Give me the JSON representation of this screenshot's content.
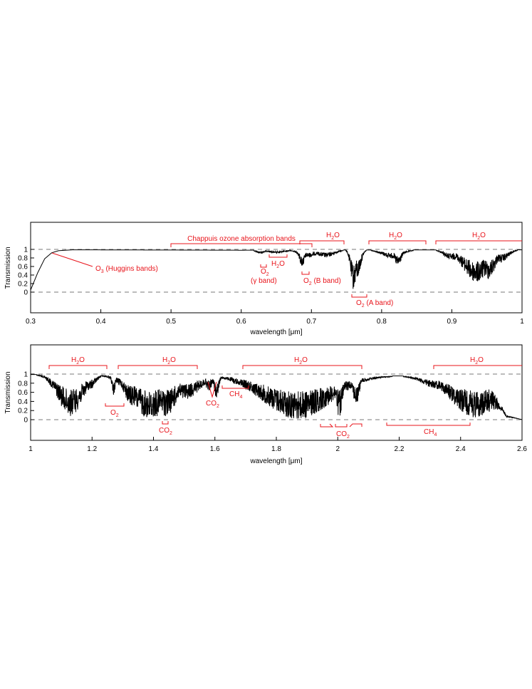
{
  "chart_data": [
    {
      "type": "line",
      "panel": "top",
      "xlabel": "wavelength [μm]",
      "ylabel": "Transmission",
      "xlim": [
        0.3,
        1.0
      ],
      "ylim": [
        -0.35,
        1.2
      ],
      "xticks": [
        "0.3",
        "0.4",
        "0.5",
        "0.6",
        "0.7",
        "0.8",
        "0.9",
        "1"
      ],
      "yticks": [
        "0",
        "0.2",
        "0.4",
        "0.6",
        "0.8",
        "1"
      ],
      "reference_lines": [
        0,
        1
      ],
      "spectrum": {
        "continuum": [
          [
            0.3,
            0.05
          ],
          [
            0.31,
            0.45
          ],
          [
            0.32,
            0.78
          ],
          [
            0.33,
            0.92
          ],
          [
            0.34,
            0.97
          ],
          [
            0.36,
            0.99
          ],
          [
            0.5,
            0.985
          ],
          [
            0.6,
            0.98
          ],
          [
            0.7,
            0.985
          ],
          [
            1.0,
            0.99
          ]
        ],
        "absorption": [
          {
            "center": 0.628,
            "width": 0.006,
            "min": 0.92
          },
          {
            "center": 0.65,
            "width": 0.012,
            "min": 0.93
          },
          {
            "center": 0.687,
            "width": 0.004,
            "min": 0.6
          },
          {
            "center": 0.695,
            "width": 0.012,
            "min": 0.82
          },
          {
            "center": 0.72,
            "width": 0.012,
            "min": 0.82
          },
          {
            "center": 0.76,
            "width": 0.004,
            "min": 0.05
          },
          {
            "center": 0.765,
            "width": 0.005,
            "min": 0.3
          },
          {
            "center": 0.815,
            "width": 0.014,
            "min": 0.8
          },
          {
            "center": 0.823,
            "width": 0.005,
            "min": 0.6
          },
          {
            "center": 0.9,
            "width": 0.01,
            "min": 0.75
          },
          {
            "center": 0.935,
            "width": 0.018,
            "min": 0.22
          },
          {
            "center": 0.952,
            "width": 0.01,
            "min": 0.3
          },
          {
            "center": 0.97,
            "width": 0.01,
            "min": 0.7
          }
        ]
      },
      "annotations": [
        {
          "text": "O3 (Huggins bands)",
          "base": "O",
          "sub": "3",
          "rest": " (Huggins bands)",
          "x": 0.33,
          "y": 0.92,
          "label_x": 0.39,
          "label_y": 0.6
        },
        {
          "text": "Chappuis ozone absorption bands",
          "x0": 0.5,
          "x1": 0.7,
          "label": "Chappuis ozone absorption bands"
        },
        {
          "text": "H2O",
          "x0": 0.68,
          "x1": 0.745
        },
        {
          "text": "H2O",
          "x0": 0.78,
          "x1": 0.865
        },
        {
          "text": "H2O",
          "x0": 0.875,
          "x1": 1.0
        },
        {
          "text": "H2O",
          "x0": 0.637,
          "x1": 0.662
        },
        {
          "text": "O2 (γ band)",
          "x0": 0.625,
          "x1": 0.632
        },
        {
          "text": "O2 (B band)",
          "x0": 0.683,
          "x1": 0.692
        },
        {
          "text": "O2 (A band)",
          "x0": 0.753,
          "x1": 0.772
        }
      ]
    },
    {
      "type": "line",
      "panel": "bottom",
      "xlabel": "wavelength [μm]",
      "ylabel": "Transmission",
      "xlim": [
        1.0,
        2.6
      ],
      "ylim": [
        -0.35,
        1.2
      ],
      "xticks": [
        "1",
        "1.2",
        "1.4",
        "1.6",
        "1.8",
        "2",
        "2.2",
        "2.4",
        "2.6"
      ],
      "yticks": [
        "0",
        "0.2",
        "0.4",
        "0.6",
        "0.8",
        "1"
      ],
      "reference_lines": [
        0,
        1
      ],
      "spectrum": {
        "continuum": [
          [
            1.0,
            0.99
          ],
          [
            1.06,
            0.99
          ],
          [
            2.5,
            0.95
          ],
          [
            2.55,
            0.1
          ],
          [
            2.6,
            0.0
          ]
        ],
        "absorption": [
          {
            "center": 1.13,
            "width": 0.04,
            "min": 0.08
          },
          {
            "center": 1.19,
            "width": 0.02,
            "min": 0.65
          },
          {
            "center": 1.27,
            "width": 0.005,
            "min": 0.5
          },
          {
            "center": 1.33,
            "width": 0.025,
            "min": 0.3
          },
          {
            "center": 1.39,
            "width": 0.06,
            "min": 0.0
          },
          {
            "center": 1.44,
            "width": 0.04,
            "min": 0.08
          },
          {
            "center": 1.5,
            "width": 0.05,
            "min": 0.45
          },
          {
            "center": 1.58,
            "width": 0.012,
            "min": 0.65
          },
          {
            "center": 1.605,
            "width": 0.008,
            "min": 0.5
          },
          {
            "center": 1.67,
            "width": 0.02,
            "min": 0.8
          },
          {
            "center": 1.87,
            "width": 0.11,
            "min": 0.0
          },
          {
            "center": 2.005,
            "width": 0.012,
            "min": 0.05
          },
          {
            "center": 2.06,
            "width": 0.01,
            "min": 0.3
          },
          {
            "center": 2.33,
            "width": 0.05,
            "min": 0.7
          },
          {
            "center": 2.45,
            "width": 0.08,
            "min": 0.05
          }
        ]
      },
      "annotations": [
        {
          "text": "H2O",
          "x0": 1.06,
          "x1": 1.25
        },
        {
          "text": "H2O",
          "x0": 1.29,
          "x1": 1.54
        },
        {
          "text": "H2O",
          "x0": 1.69,
          "x1": 2.08
        },
        {
          "text": "H2O",
          "x0": 2.31,
          "x1": 2.6
        },
        {
          "text": "O2",
          "x0": 1.245,
          "x1": 1.3
        },
        {
          "text": "CO2",
          "x0": 1.43,
          "x1": 1.45
        },
        {
          "text": "CO2",
          "x0": 1.575,
          "x1": 1.6
        },
        {
          "text": "CH4",
          "x0": 1.63,
          "x1": 1.72
        },
        {
          "text": "CO2",
          "x0": 1.94,
          "x1": 2.08
        },
        {
          "text": "CH4",
          "x0": 2.16,
          "x1": 2.44
        }
      ]
    }
  ],
  "labels": {
    "top_xlabel": "wavelength [",
    "top_xlabel_unit": "μm",
    "top_xlabel_end": "]",
    "bottom_xlabel": "wavelength [",
    "bottom_xlabel_unit": "μm",
    "bottom_xlabel_end": "]",
    "top_ylabel": "Transmission",
    "bottom_ylabel": "Transmission",
    "chappuis": "Chappuis ozone absorption bands",
    "h2o_base": "H",
    "h2o_sub": "2",
    "h2o_end": "O",
    "o2_base": "O",
    "o2_sub": "2",
    "o3_base": "O",
    "o3_sub": "3",
    "huggins": " (Huggins bands)",
    "gamma_band": "(γ band)",
    "b_band": " (B band)",
    "a_band": " (A band)",
    "co2_base": "CO",
    "co2_sub": "2",
    "ch4_base": "CH",
    "ch4_sub": "4"
  },
  "colors": {
    "annotation": "#e8141b",
    "spectrum": "#000000",
    "reference_line": "#7a7a7a"
  }
}
